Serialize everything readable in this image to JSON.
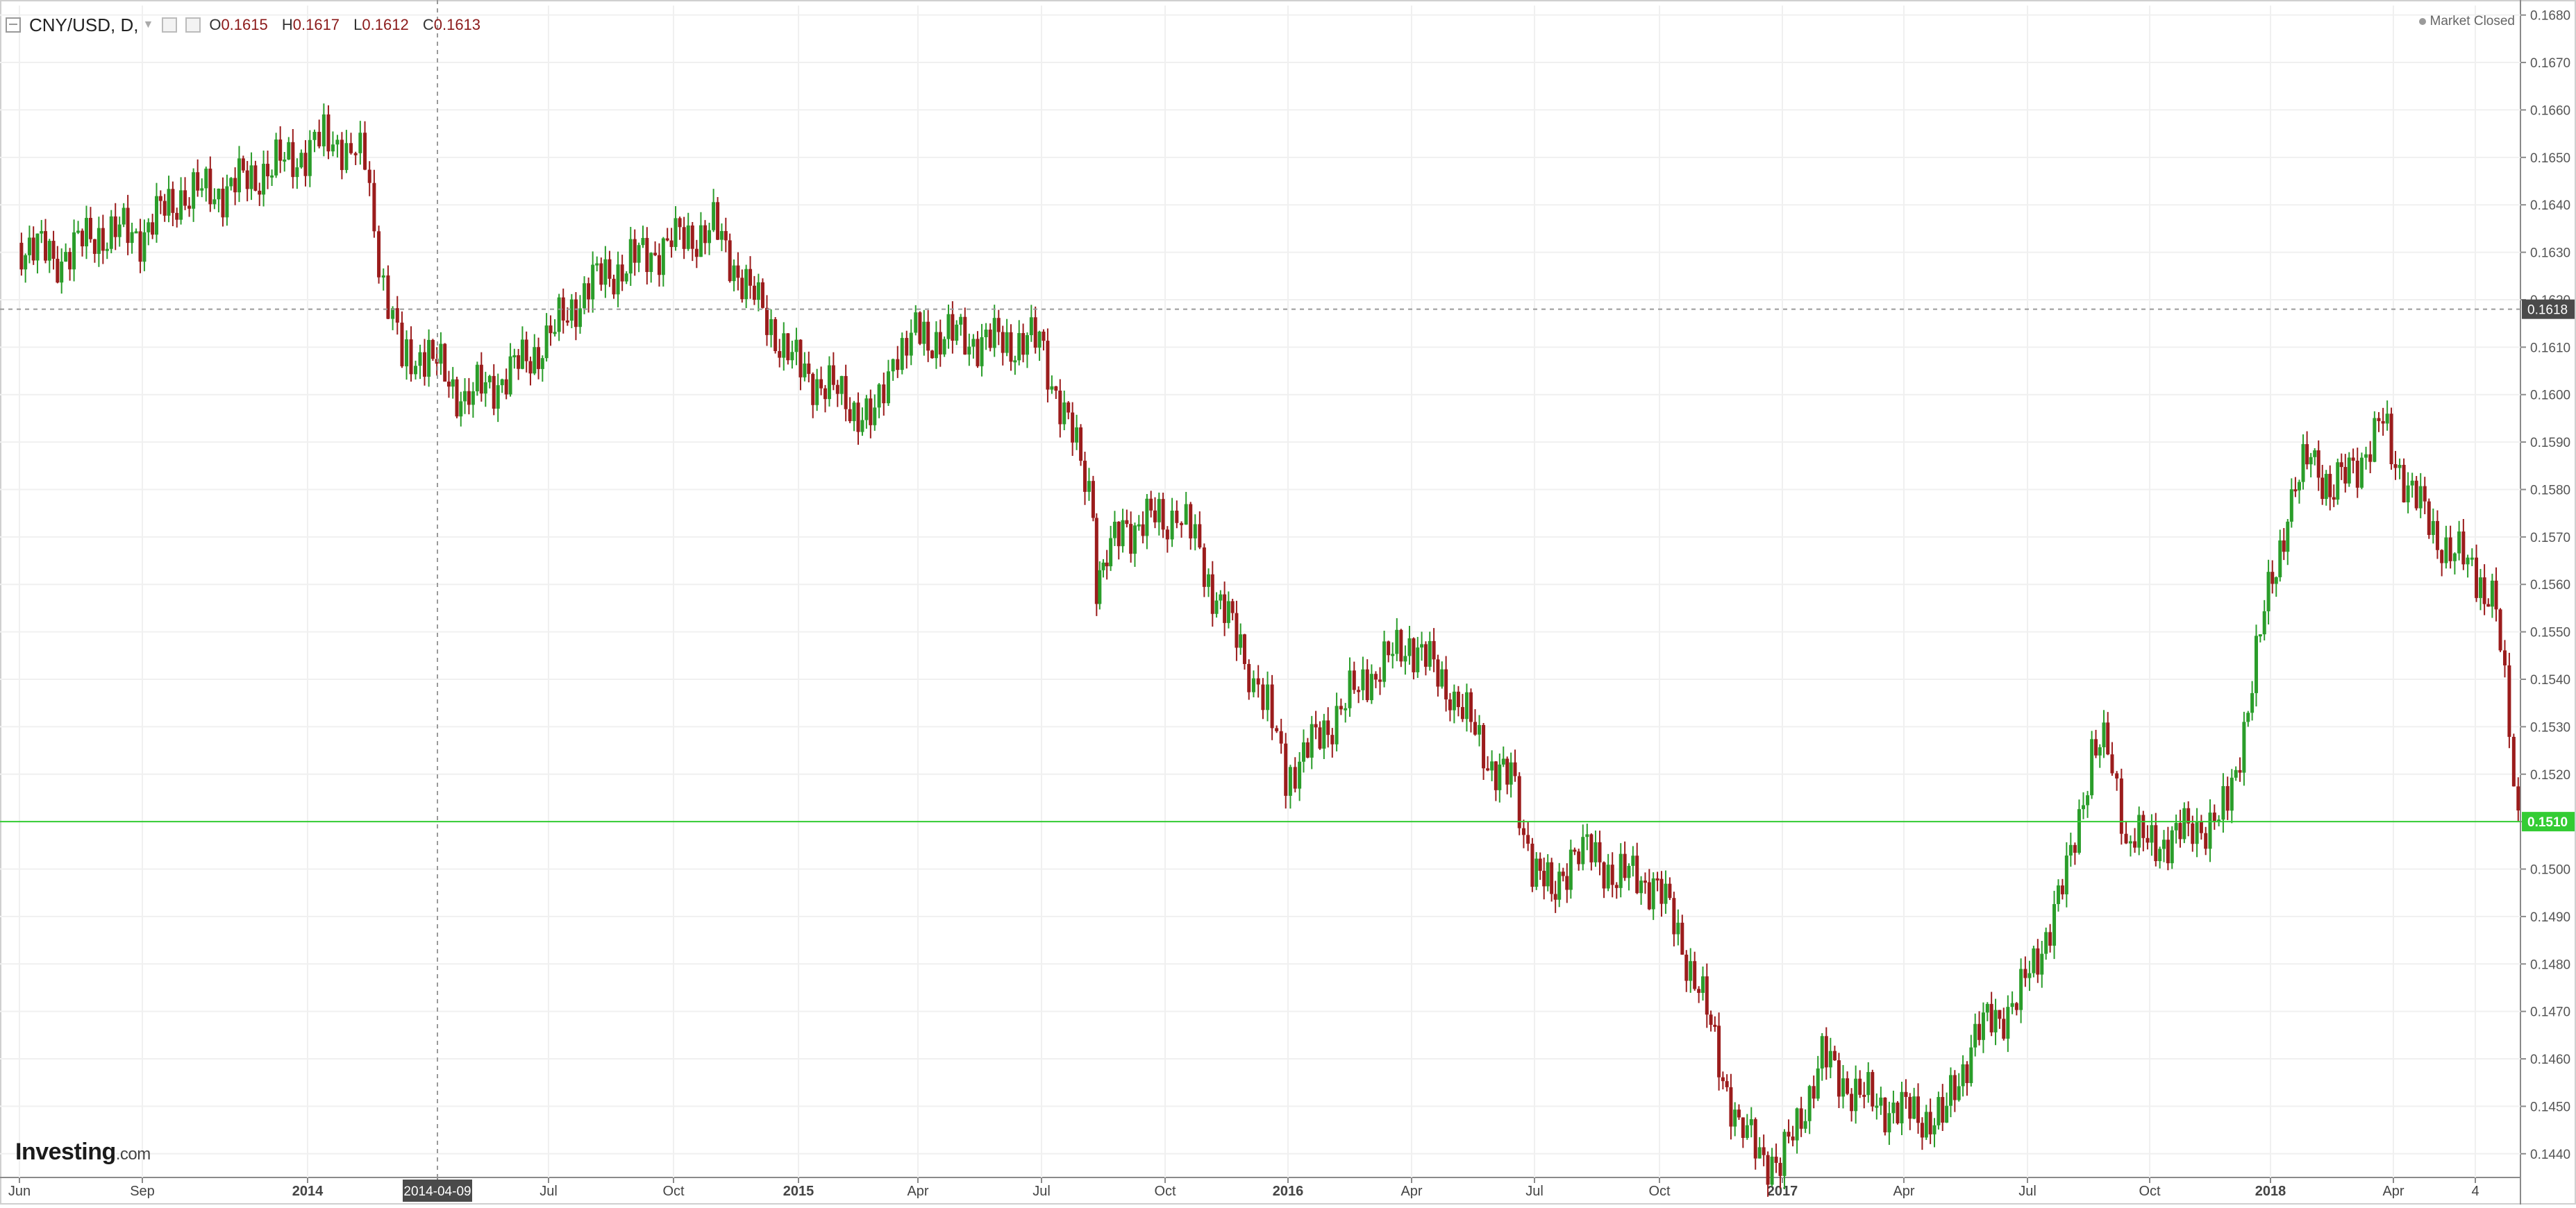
{
  "legend": {
    "symbol": "CNY/USD, D,",
    "ohlc": [
      {
        "k": "O",
        "v": "0.1615"
      },
      {
        "k": "H",
        "v": "0.1617"
      },
      {
        "k": "L",
        "v": "0.1612"
      },
      {
        "k": "C",
        "v": "0.1613"
      }
    ]
  },
  "status": "Market Closed",
  "brand": {
    "name": "Investing",
    "suffix": ".com"
  },
  "crosshair": {
    "date_label": "2014-04-09",
    "price_label": "0.1618",
    "price": 0.1618
  },
  "current_price": {
    "label": "0.1510",
    "value": 0.151
  },
  "colors": {
    "up": "#2a9d2a",
    "down": "#9b1c1c",
    "current_line": "#33cc33",
    "crosshair": "#9a9a9a",
    "tag_dark": "#4a4a4a"
  },
  "chart_data": {
    "type": "line",
    "title": "CNY/USD, D,",
    "xlabel": "",
    "ylabel": "",
    "x_ticks": [
      "Jun",
      "Sep",
      "2014",
      "2014-04-09",
      "Jul",
      "Oct",
      "2015",
      "Apr",
      "Jul",
      "Oct",
      "2016",
      "Apr",
      "Jul",
      "Oct",
      "2017",
      "Apr",
      "Jul",
      "Oct",
      "2018",
      "Apr",
      "4"
    ],
    "y_ticks": [
      "0.1680",
      "0.1670",
      "0.1660",
      "0.1650",
      "0.1640",
      "0.1630",
      "0.1620",
      "0.1610",
      "0.1600",
      "0.1590",
      "0.1580",
      "0.1570",
      "0.1560",
      "0.1550",
      "0.1540",
      "0.1530",
      "0.1520",
      "0.1510",
      "0.1500",
      "0.1490",
      "0.1480",
      "0.1470",
      "0.1460",
      "0.1450",
      "0.1440"
    ],
    "ylim": [
      0.1435,
      0.1682
    ],
    "grid": true,
    "series": [
      {
        "x": [
          "2013-06-01",
          "2013-07-01",
          "2013-08-01",
          "2013-09-01",
          "2013-10-01",
          "2013-11-01",
          "2013-12-01",
          "2014-01-01",
          "2014-01-15",
          "2014-02-01",
          "2014-02-15",
          "2014-03-01",
          "2014-03-15",
          "2014-04-01",
          "2014-05-01",
          "2014-06-01",
          "2014-07-01",
          "2014-08-01",
          "2014-09-01",
          "2014-10-01",
          "2014-11-01",
          "2014-12-01",
          "2015-01-01",
          "2015-02-01",
          "2015-03-01",
          "2015-03-15",
          "2015-04-01",
          "2015-05-01",
          "2015-06-01",
          "2015-07-01",
          "2015-08-10",
          "2015-08-12",
          "2015-08-20",
          "2015-09-01",
          "2015-10-01",
          "2015-10-15",
          "2015-11-01",
          "2015-12-01",
          "2015-12-15",
          "2016-01-01",
          "2016-01-08",
          "2016-02-01",
          "2016-03-01",
          "2016-04-01",
          "2016-05-01",
          "2016-06-01",
          "2016-06-15",
          "2016-07-01",
          "2016-07-15",
          "2016-08-01",
          "2016-09-01",
          "2016-10-01",
          "2016-11-01",
          "2016-12-01",
          "2017-01-01",
          "2017-02-01",
          "2017-03-01",
          "2017-04-01",
          "2017-05-01",
          "2017-05-25",
          "2017-06-15",
          "2017-07-01",
          "2017-08-01",
          "2017-08-20",
          "2017-09-01",
          "2017-09-15",
          "2017-10-01",
          "2017-11-01",
          "2017-12-01",
          "2018-01-01",
          "2018-01-15",
          "2018-02-01",
          "2018-02-15",
          "2018-03-01",
          "2018-03-26",
          "2018-04-01",
          "2018-05-01",
          "2018-06-01",
          "2018-06-15",
          "2018-07-01"
        ],
        "close": [
          0.1632,
          0.1629,
          0.1634,
          0.1634,
          0.1642,
          0.1643,
          0.1647,
          0.1651,
          0.1654,
          0.1653,
          0.1648,
          0.1624,
          0.1607,
          0.1609,
          0.1599,
          0.1604,
          0.1611,
          0.1623,
          0.1628,
          0.1632,
          0.1635,
          0.162,
          0.1606,
          0.16,
          0.1594,
          0.1608,
          0.1612,
          0.1612,
          0.1611,
          0.1611,
          0.1578,
          0.156,
          0.1565,
          0.1572,
          0.1574,
          0.1576,
          0.1563,
          0.1545,
          0.1537,
          0.152,
          0.1521,
          0.1531,
          0.154,
          0.1548,
          0.1538,
          0.1522,
          0.1518,
          0.1502,
          0.1494,
          0.1505,
          0.1499,
          0.1497,
          0.1475,
          0.1445,
          0.1437,
          0.146,
          0.1452,
          0.1449,
          0.1447,
          0.1465,
          0.147,
          0.1475,
          0.1498,
          0.1525,
          0.1525,
          0.1508,
          0.1505,
          0.1508,
          0.1512,
          0.1558,
          0.1575,
          0.1588,
          0.158,
          0.1583,
          0.1594,
          0.1588,
          0.1571,
          0.1562,
          0.1555,
          0.1511
        ]
      }
    ]
  }
}
